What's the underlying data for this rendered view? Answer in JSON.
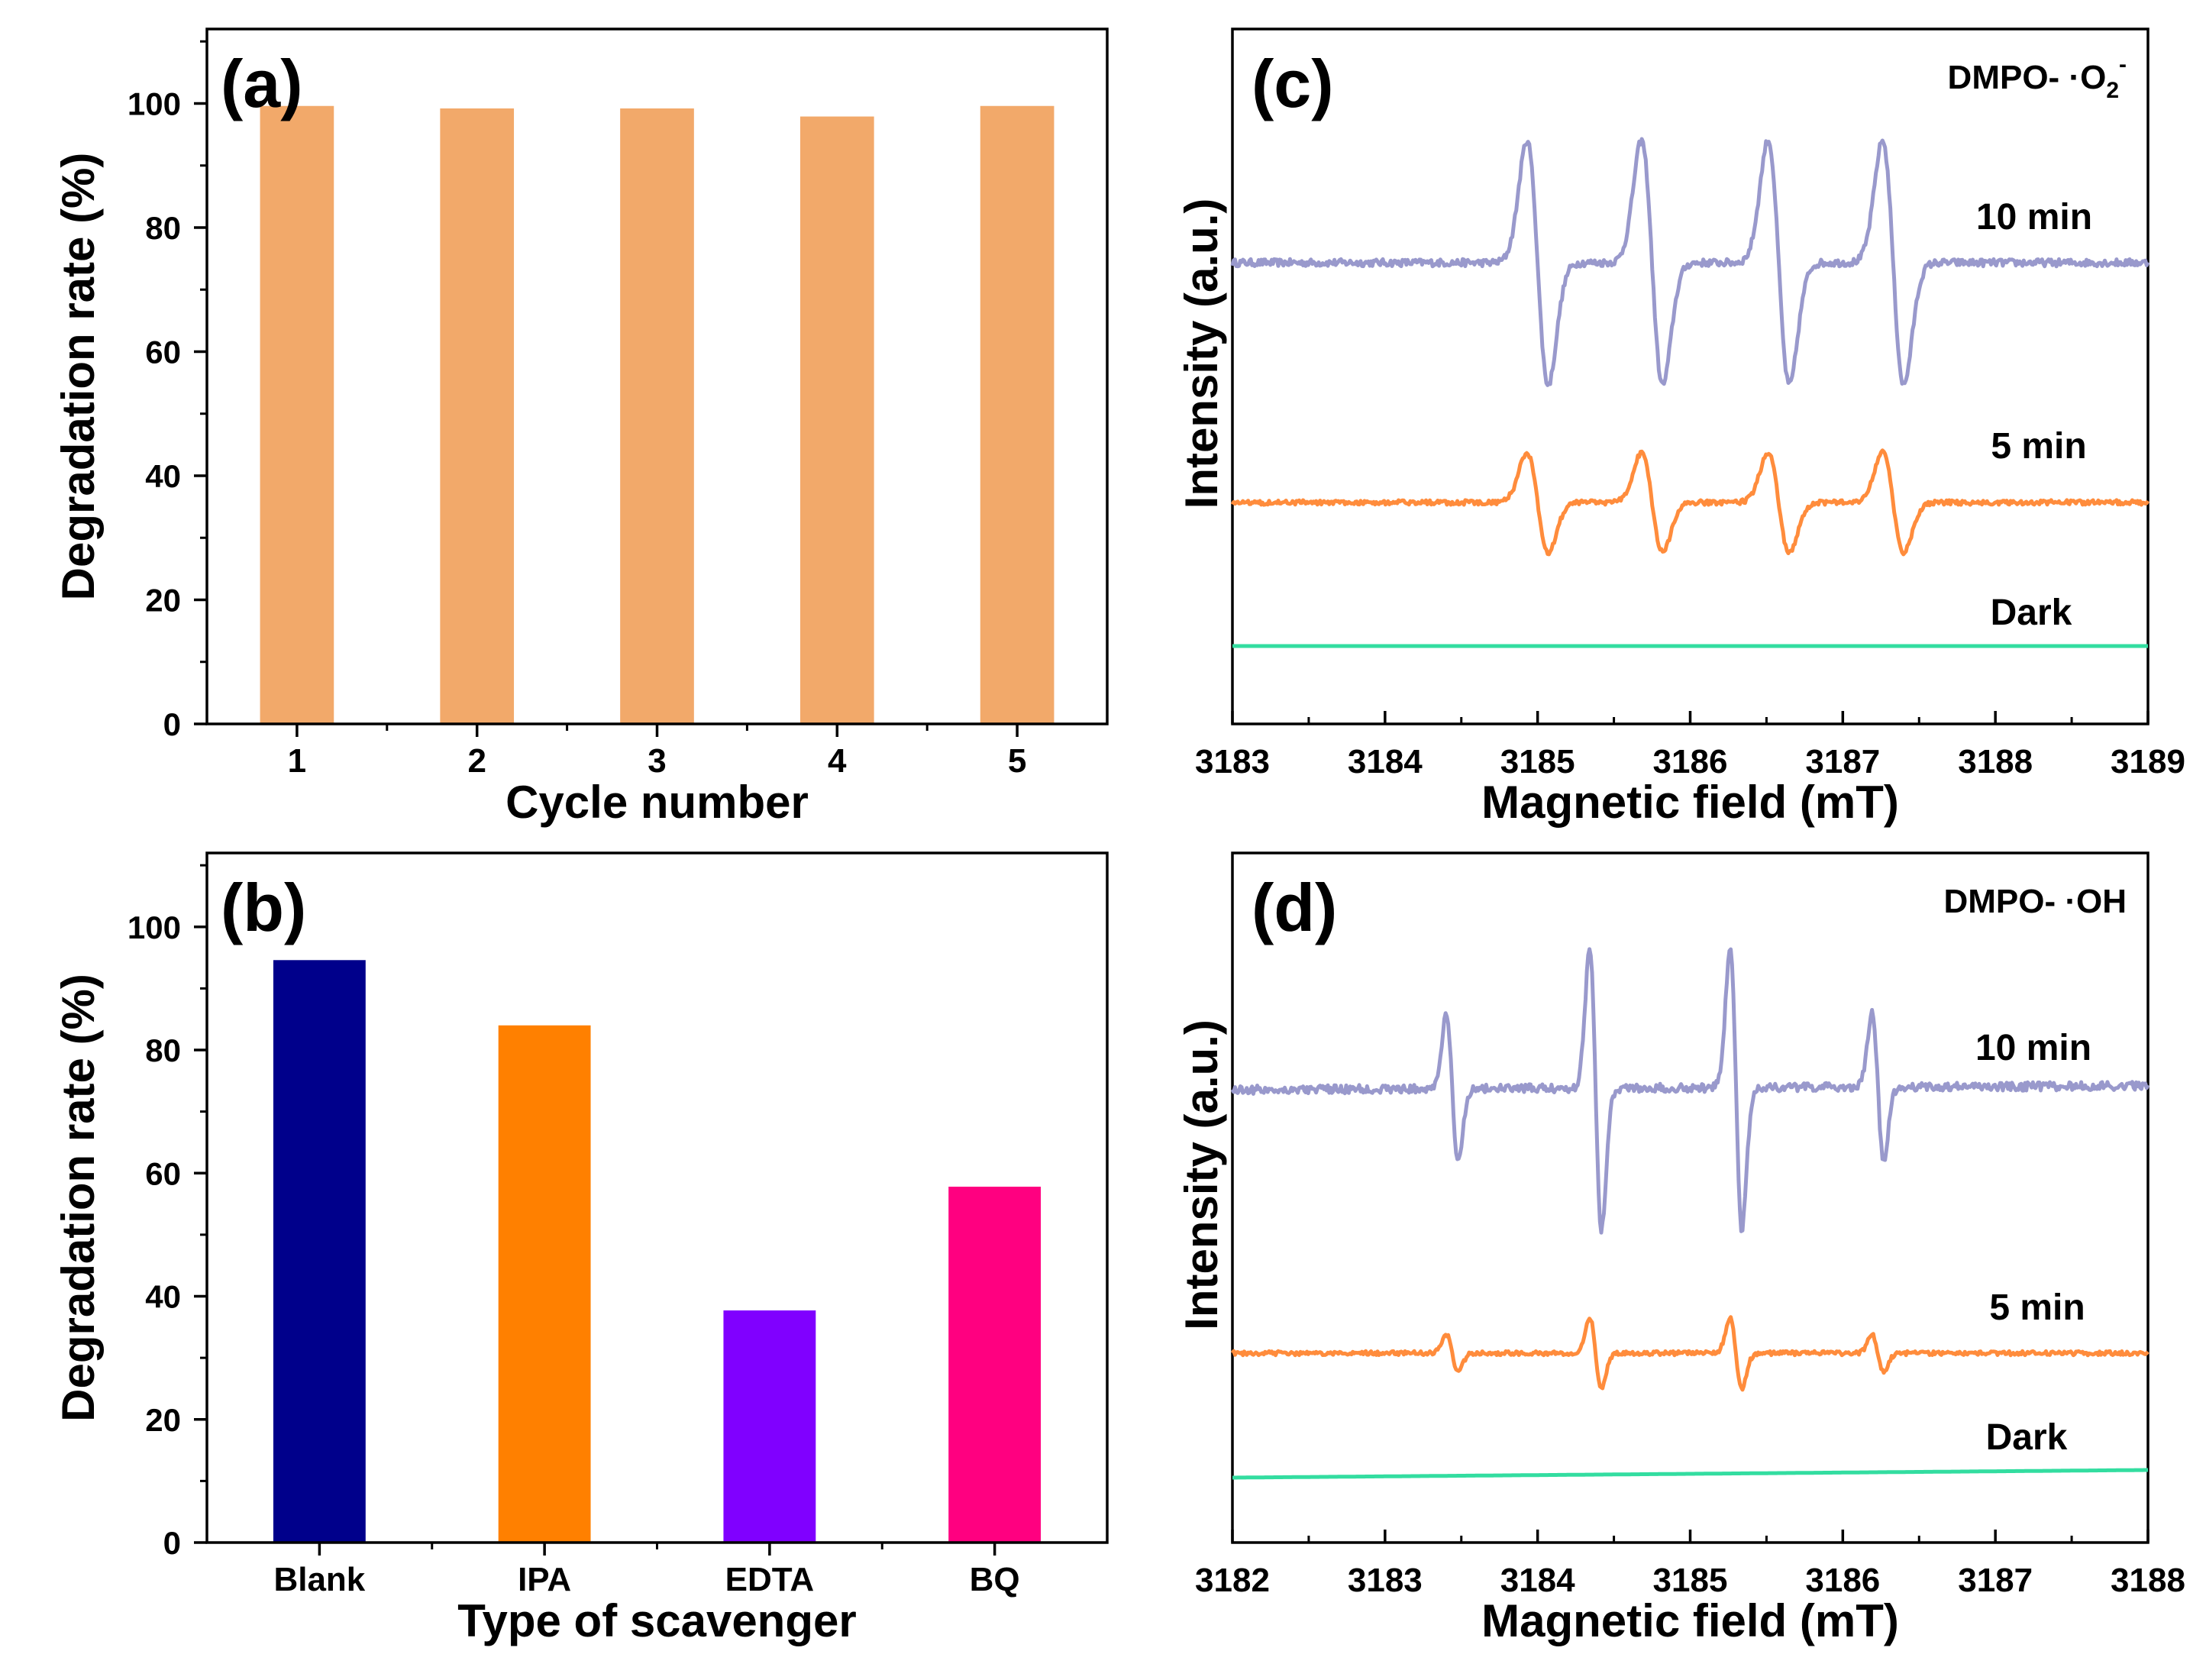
{
  "chart_data": [
    {
      "panel": "(a)",
      "type": "bar",
      "xlabel": "Cycle number",
      "ylabel": "Degradation rate (%)",
      "categories": [
        "1",
        "2",
        "3",
        "4",
        "5"
      ],
      "values": [
        99.6,
        99.2,
        99.2,
        97.9,
        99.6
      ],
      "ylim": [
        0,
        112
      ],
      "yticks": [
        0,
        20,
        40,
        60,
        80,
        100
      ],
      "bar_color": "#f2a96a"
    },
    {
      "panel": "(b)",
      "type": "bar",
      "xlabel": "Type of scavenger",
      "ylabel": "Degradation rate (%)",
      "categories": [
        "Blank",
        "IPA",
        "EDTA",
        "BQ"
      ],
      "values": [
        94.6,
        84.0,
        37.7,
        57.8
      ],
      "colors": [
        "#00008b",
        "#ff8000",
        "#8000ff",
        "#ff0080"
      ],
      "ylim": [
        0,
        112
      ],
      "yticks": [
        0,
        20,
        40,
        60,
        80,
        100
      ]
    },
    {
      "panel": "(c)",
      "type": "line",
      "title": "DMPO- ·O2-",
      "title_main": "DMPO- ·O",
      "title_sub": "2",
      "title_sup": "-",
      "xlabel": "Magnetic field (mT)",
      "ylabel": "Intensity (a.u.)",
      "xlim": [
        3183,
        3189
      ],
      "xticks": [
        3183,
        3184,
        3185,
        3186,
        3187,
        3188,
        3189
      ],
      "peaks": [
        {
          "center": 3185.0,
          "amp": 1.0
        },
        {
          "center": 3185.75,
          "amp": 1.0
        },
        {
          "center": 3186.58,
          "amp": 1.0
        },
        {
          "center": 3187.33,
          "amp": 1.0
        }
      ],
      "series": [
        {
          "name": "10 min",
          "color": "#9999cc",
          "baseline": 0.0,
          "amp": 1.0
        },
        {
          "name": "5 min",
          "color": "#ff8c3c",
          "baseline": 0.0,
          "amp": 0.62
        },
        {
          "name": "Dark",
          "color": "#33dda0",
          "baseline": 0.0,
          "amp": 0.0
        }
      ]
    },
    {
      "panel": "(d)",
      "type": "line",
      "title": "DMPO- ·OH",
      "title_main": "DMPO- ·OH",
      "title_sub": "",
      "title_sup": "",
      "xlabel": "Magnetic field (mT)",
      "ylabel": "Intensity (a.u.)",
      "xlim": [
        3182,
        3188
      ],
      "xticks": [
        3182,
        3183,
        3184,
        3185,
        3186,
        3187,
        3188
      ],
      "peaks": [
        {
          "center": 3183.44,
          "amp": 0.52
        },
        {
          "center": 3184.38,
          "amp": 1.0
        },
        {
          "center": 3185.3,
          "amp": 1.0
        },
        {
          "center": 3186.23,
          "amp": 0.52
        }
      ],
      "series": [
        {
          "name": "10 min",
          "color": "#9999cc",
          "baseline": 0.0,
          "amp": 1.0
        },
        {
          "name": "5 min",
          "color": "#ff8c3c",
          "baseline": 0.0,
          "amp": 0.5
        },
        {
          "name": "Dark",
          "color": "#33dda0",
          "baseline": 0.0,
          "amp": 0.0
        }
      ]
    }
  ]
}
